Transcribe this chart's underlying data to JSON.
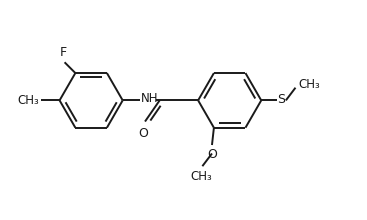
{
  "background_color": "#ffffff",
  "line_color": "#1a1a1a",
  "line_width": 1.4,
  "font_size": 8.5,
  "figsize": [
    3.67,
    2.2
  ],
  "dpi": 100,
  "xlim": [
    0,
    9.5
  ],
  "ylim": [
    0,
    5.5
  ]
}
